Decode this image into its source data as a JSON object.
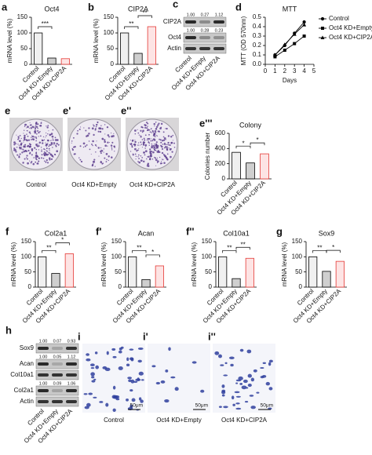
{
  "chart_data": [
    {
      "type": "bar",
      "panel": "a",
      "title": "Oct4",
      "ylabel": "mRNA level (%)",
      "categories": [
        "Control",
        "Oct4 KD+Empty",
        "Oct4 KD+CIP2A"
      ],
      "values": [
        100,
        20,
        18
      ],
      "colors": [
        "#f0f0f0",
        "#cfcfcf",
        "#fde4e4"
      ],
      "edge_colors": [
        "#000000",
        "#000000",
        "#e53935"
      ],
      "ylim": [
        0,
        150
      ],
      "yticks": [
        0,
        50,
        100,
        150
      ],
      "annotations": [
        "***"
      ]
    },
    {
      "type": "bar",
      "panel": "b",
      "title": "CIP2A",
      "ylabel": "mRNA level (%)",
      "categories": [
        "Control",
        "Oct4 KD+Empty",
        "Oct4 KD+CIP2A"
      ],
      "values": [
        100,
        35,
        120
      ],
      "colors": [
        "#f0f0f0",
        "#cfcfcf",
        "#fde4e4"
      ],
      "edge_colors": [
        "#000000",
        "#000000",
        "#e53935"
      ],
      "ylim": [
        0,
        150
      ],
      "yticks": [
        0,
        50,
        100,
        150
      ],
      "annotations": [
        "**",
        "**"
      ]
    },
    {
      "type": "line",
      "panel": "d",
      "title": "MTT",
      "ylabel": "MTT (OD 570nm)",
      "xlabel": "Days",
      "x": [
        1,
        2,
        3,
        4
      ],
      "xlim": [
        0,
        5
      ],
      "xticks": [
        0,
        1,
        2,
        3,
        4,
        5
      ],
      "ylim": [
        0,
        0.5
      ],
      "yticks": [
        {
          "value": 0,
          "label": "0.0"
        },
        0.1,
        0.2,
        0.3,
        0.4,
        0.5
      ],
      "legend": "right",
      "series": [
        {
          "name": "Control",
          "color": "#000000",
          "marker": "circle",
          "values": [
            0.1,
            0.2,
            0.33,
            0.45
          ]
        },
        {
          "name": "Oct4 KD+Empty",
          "color": "#000000",
          "marker": "square",
          "values": [
            0.08,
            0.15,
            0.22,
            0.3
          ]
        },
        {
          "name": "Oct4 KD+CIP2A",
          "color": "#000000",
          "marker": "triangle",
          "values": [
            0.1,
            0.21,
            0.32,
            0.42
          ]
        }
      ]
    },
    {
      "type": "bar",
      "panel": "e'''",
      "title": "Colony",
      "ylabel": "Colonies number",
      "categories": [
        "Control",
        "Oct4 KD+Empty",
        "Oct4 KD+CIP2A"
      ],
      "values": [
        350,
        210,
        330
      ],
      "colors": [
        "#f0f0f0",
        "#cfcfcf",
        "#fde4e4"
      ],
      "edge_colors": [
        "#000000",
        "#000000",
        "#e53935"
      ],
      "ylim": [
        0,
        600
      ],
      "yticks": [
        0,
        200,
        400,
        600
      ],
      "annotations": [
        "*",
        "*"
      ]
    },
    {
      "type": "bar",
      "panel": "f",
      "title": "Col2a1",
      "ylabel": "mRNA level (%)",
      "categories": [
        "Control",
        "Oct4 KD+Empty",
        "Oct4 KD+CIP2A"
      ],
      "values": [
        100,
        45,
        110
      ],
      "colors": [
        "#f0f0f0",
        "#cfcfcf",
        "#fde4e4"
      ],
      "edge_colors": [
        "#000000",
        "#000000",
        "#e53935"
      ],
      "ylim": [
        0,
        150
      ],
      "yticks": [
        0,
        50,
        100,
        150
      ],
      "annotations": [
        "**",
        "*"
      ]
    },
    {
      "type": "bar",
      "panel": "f'",
      "title": "Acan",
      "ylabel": "mRNA level (%)",
      "categories": [
        "Control",
        "Oct4 KD+Empty",
        "Oct4 KD+CIP2A"
      ],
      "values": [
        100,
        25,
        70
      ],
      "colors": [
        "#f0f0f0",
        "#cfcfcf",
        "#fde4e4"
      ],
      "edge_colors": [
        "#000000",
        "#000000",
        "#e53935"
      ],
      "ylim": [
        0,
        150
      ],
      "yticks": [
        0,
        50,
        100,
        150
      ],
      "annotations": [
        "**",
        "*"
      ]
    },
    {
      "type": "bar",
      "panel": "f''",
      "title": "Col10a1",
      "ylabel": "mRNA level (%)",
      "categories": [
        "Control",
        "Oct4 KD+Empty",
        "Oct4 KD+CIP2A"
      ],
      "values": [
        100,
        28,
        95
      ],
      "colors": [
        "#f0f0f0",
        "#cfcfcf",
        "#fde4e4"
      ],
      "edge_colors": [
        "#000000",
        "#000000",
        "#e53935"
      ],
      "ylim": [
        0,
        150
      ],
      "yticks": [
        0,
        50,
        100,
        150
      ],
      "annotations": [
        "**",
        "**"
      ]
    },
    {
      "type": "bar",
      "panel": "g",
      "title": "Sox9",
      "ylabel": "mRNA level (%)",
      "categories": [
        "Control",
        "Oct4 KD+Empty",
        "Oct4 KD+CIP2A"
      ],
      "values": [
        100,
        52,
        85
      ],
      "colors": [
        "#f0f0f0",
        "#cfcfcf",
        "#fde4e4"
      ],
      "edge_colors": [
        "#000000",
        "#000000",
        "#e53935"
      ],
      "ylim": [
        0,
        150
      ],
      "yticks": [
        0,
        50,
        100,
        150
      ],
      "annotations": [
        "**",
        "*"
      ]
    }
  ],
  "blots": [
    {
      "panel": "c",
      "lanes": [
        "Control",
        "Oct4 KD+Empty",
        "Oct4 KD+CIP2A"
      ],
      "rows": [
        {
          "name": "CIP2A",
          "quant": [
            "1.00",
            "0.27",
            "1.12"
          ]
        },
        {
          "name": "Oct4",
          "quant": [
            "1.00",
            "0.28",
            "0.23"
          ]
        },
        {
          "name": "Actin"
        }
      ]
    },
    {
      "panel": "h",
      "lanes": [
        "Control",
        "Oct4 KD+Empty",
        "Oct4 KD+CIP2A"
      ],
      "rows": [
        {
          "name": "Sox9",
          "quant": [
            "1.00",
            "0.07",
            "0.93"
          ]
        },
        {
          "name": "Acan",
          "quant": [
            "1.00",
            "0.05",
            "1.12"
          ]
        },
        {
          "name": "Col10a1"
        },
        {
          "name": "Col2a1",
          "quant": [
            "1.00",
            "0.09",
            "1.06"
          ]
        },
        {
          "name": "Actin"
        }
      ]
    }
  ],
  "images": [
    {
      "panel": "e",
      "caption": "Control"
    },
    {
      "panel": "e'",
      "caption": "Oct4 KD+Empty"
    },
    {
      "panel": "e''",
      "caption": "Oct4 KD+CIP2A"
    },
    {
      "panel": "i",
      "caption": "Control",
      "scale_bar": "50μm"
    },
    {
      "panel": "i'",
      "caption": "Oct4 KD+Empty",
      "scale_bar": "50μm"
    },
    {
      "panel": "i''",
      "caption": "Oct4 KD+CIP2A",
      "scale_bar": "50μm"
    }
  ]
}
